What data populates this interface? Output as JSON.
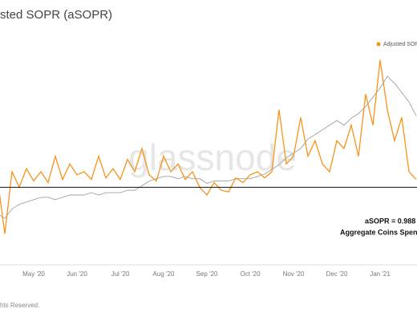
{
  "chart_data": {
    "type": "line",
    "title": "sted SOPR (aSOPR)",
    "watermark": "glassnode",
    "footer": "hts Reserved.",
    "annotations": [
      "aSOPR = 0.988",
      "Aggregate Coins Spent"
    ],
    "categories": [
      null,
      null,
      null,
      null,
      null,
      "May '20",
      null,
      null,
      null,
      null,
      null,
      "Jun '20",
      null,
      null,
      null,
      null,
      null,
      "Jul '20",
      null,
      null,
      null,
      null,
      null,
      "Aug '20",
      null,
      null,
      null,
      null,
      null,
      "Sep '20",
      null,
      null,
      null,
      null,
      null,
      "Oct '20",
      null,
      null,
      null,
      null,
      null,
      "Nov '20",
      null,
      null,
      null,
      null,
      null,
      "Dec '20",
      null,
      null,
      null,
      null,
      null,
      "Jan '21",
      null,
      null,
      null,
      null,
      null
    ],
    "series": [
      {
        "name": "Adjusted SOPR (aSOPR)",
        "color": "#f7931a",
        "values": [
          1.005,
          0.97,
          1.01,
          1.0,
          1.012,
          1.004,
          1.01,
          1.003,
          1.02,
          1.005,
          1.015,
          1.008,
          1.01,
          1.005,
          1.02,
          1.006,
          1.012,
          1.005,
          1.018,
          1.01,
          1.025,
          1.008,
          1.004,
          1.02,
          1.01,
          1.015,
          1.005,
          1.01,
          1.0,
          0.995,
          1.003,
          0.998,
          0.997,
          1.006,
          1.003,
          1.008,
          1.01,
          1.006,
          1.01,
          1.05,
          1.015,
          1.02,
          1.045,
          1.02,
          1.03,
          1.015,
          1.01,
          1.03,
          1.025,
          1.04,
          1.02,
          1.06,
          1.04,
          1.082,
          1.05,
          1.03,
          1.045,
          1.01,
          1.005
        ]
      },
      {
        "color": "#a0a0a0",
        "axis": "y2",
        "values": [
          22,
          20,
          24,
          26,
          27,
          28,
          29,
          29,
          28,
          29,
          30,
          30,
          30,
          31,
          30,
          31,
          31,
          31,
          32,
          32,
          34,
          36,
          37,
          38,
          38,
          37,
          38,
          37,
          37,
          35,
          36,
          36,
          36,
          37,
          37,
          37,
          38,
          39,
          41,
          43,
          46,
          48,
          50,
          54,
          56,
          58,
          60,
          62,
          60,
          63,
          65,
          68,
          72,
          76,
          81,
          78,
          74,
          70,
          64
        ]
      }
    ],
    "reference_line": 1,
    "ylim": [
      0.95,
      1.1
    ],
    "y2lim": [
      0,
      100
    ]
  }
}
